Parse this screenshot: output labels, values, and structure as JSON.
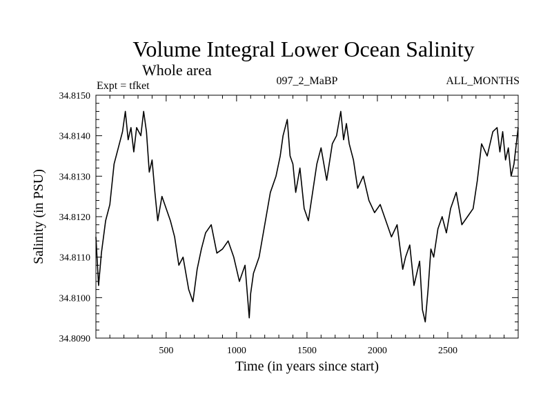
{
  "header": {
    "title": "Volume Integral Lower Ocean Salinity",
    "subtitle": "Whole area",
    "experiment": "Expt = tfket",
    "run_id": "097_2_MaBP",
    "months": "ALL_MONTHS"
  },
  "chart_data": {
    "type": "line",
    "title": "Volume Integral Lower Ocean Salinity",
    "subtitle": "Whole area",
    "xlabel": "Time (in years since start)",
    "ylabel": "Salinity (in PSU)",
    "xlim": [
      1,
      3000
    ],
    "ylim": [
      34.809,
      34.815
    ],
    "x_ticks": [
      500,
      1000,
      1500,
      2000,
      2500
    ],
    "x_tick_labels": [
      "500",
      "1000",
      "1500",
      "2000",
      "2500"
    ],
    "y_ticks": [
      34.809,
      34.81,
      34.811,
      34.812,
      34.813,
      34.814,
      34.815
    ],
    "y_tick_labels": [
      "34.8090",
      "34.8100",
      "34.8110",
      "34.8120",
      "34.8130",
      "34.8140",
      "34.8150"
    ],
    "grid": false,
    "series": [
      {
        "color": "#000000",
        "x": [
          1,
          20,
          40,
          70,
          100,
          130,
          160,
          190,
          210,
          230,
          250,
          270,
          290,
          320,
          340,
          360,
          380,
          400,
          420,
          440,
          470,
          500,
          530,
          560,
          590,
          620,
          660,
          690,
          720,
          750,
          780,
          820,
          860,
          900,
          940,
          980,
          1020,
          1060,
          1090,
          1100,
          1120,
          1160,
          1200,
          1240,
          1280,
          1310,
          1330,
          1360,
          1380,
          1400,
          1420,
          1450,
          1480,
          1510,
          1540,
          1570,
          1600,
          1640,
          1680,
          1710,
          1740,
          1760,
          1780,
          1800,
          1830,
          1860,
          1900,
          1940,
          1980,
          2020,
          2060,
          2100,
          2140,
          2180,
          2200,
          2230,
          2260,
          2300,
          2320,
          2340,
          2360,
          2380,
          2400,
          2430,
          2460,
          2490,
          2520,
          2560,
          2600,
          2640,
          2680,
          2710,
          2740,
          2780,
          2820,
          2850,
          2870,
          2890,
          2910,
          2930,
          2950,
          2970,
          2990,
          3000
        ],
        "y": [
          34.8115,
          34.8103,
          34.8111,
          34.8119,
          34.8123,
          34.8133,
          34.8137,
          34.8141,
          34.8146,
          34.8139,
          34.8142,
          34.8136,
          34.8142,
          34.814,
          34.8146,
          34.8141,
          34.8131,
          34.8134,
          34.8126,
          34.8119,
          34.8125,
          34.8122,
          34.8119,
          34.8115,
          34.8108,
          34.811,
          34.8102,
          34.8099,
          34.8107,
          34.8112,
          34.8116,
          34.8118,
          34.8111,
          34.8112,
          34.8114,
          34.811,
          34.8104,
          34.8108,
          34.8095,
          34.8101,
          34.8106,
          34.811,
          34.8118,
          34.8126,
          34.813,
          34.8135,
          34.814,
          34.8144,
          34.8135,
          34.8133,
          34.8126,
          34.8132,
          34.8122,
          34.8119,
          34.8126,
          34.8133,
          34.8137,
          34.8129,
          34.8138,
          34.814,
          34.8146,
          34.8139,
          34.8143,
          34.8138,
          34.8134,
          34.8127,
          34.813,
          34.8124,
          34.8121,
          34.8123,
          34.8119,
          34.8115,
          34.8118,
          34.8107,
          34.811,
          34.8113,
          34.8103,
          34.8109,
          34.8097,
          34.8094,
          34.8102,
          34.8112,
          34.811,
          34.8117,
          34.812,
          34.8116,
          34.8122,
          34.8126,
          34.8118,
          34.812,
          34.8122,
          34.8129,
          34.8138,
          34.8135,
          34.8141,
          34.8142,
          34.8136,
          34.8141,
          34.8134,
          34.8137,
          34.813,
          34.8133,
          34.8139,
          34.8142
        ]
      }
    ]
  }
}
